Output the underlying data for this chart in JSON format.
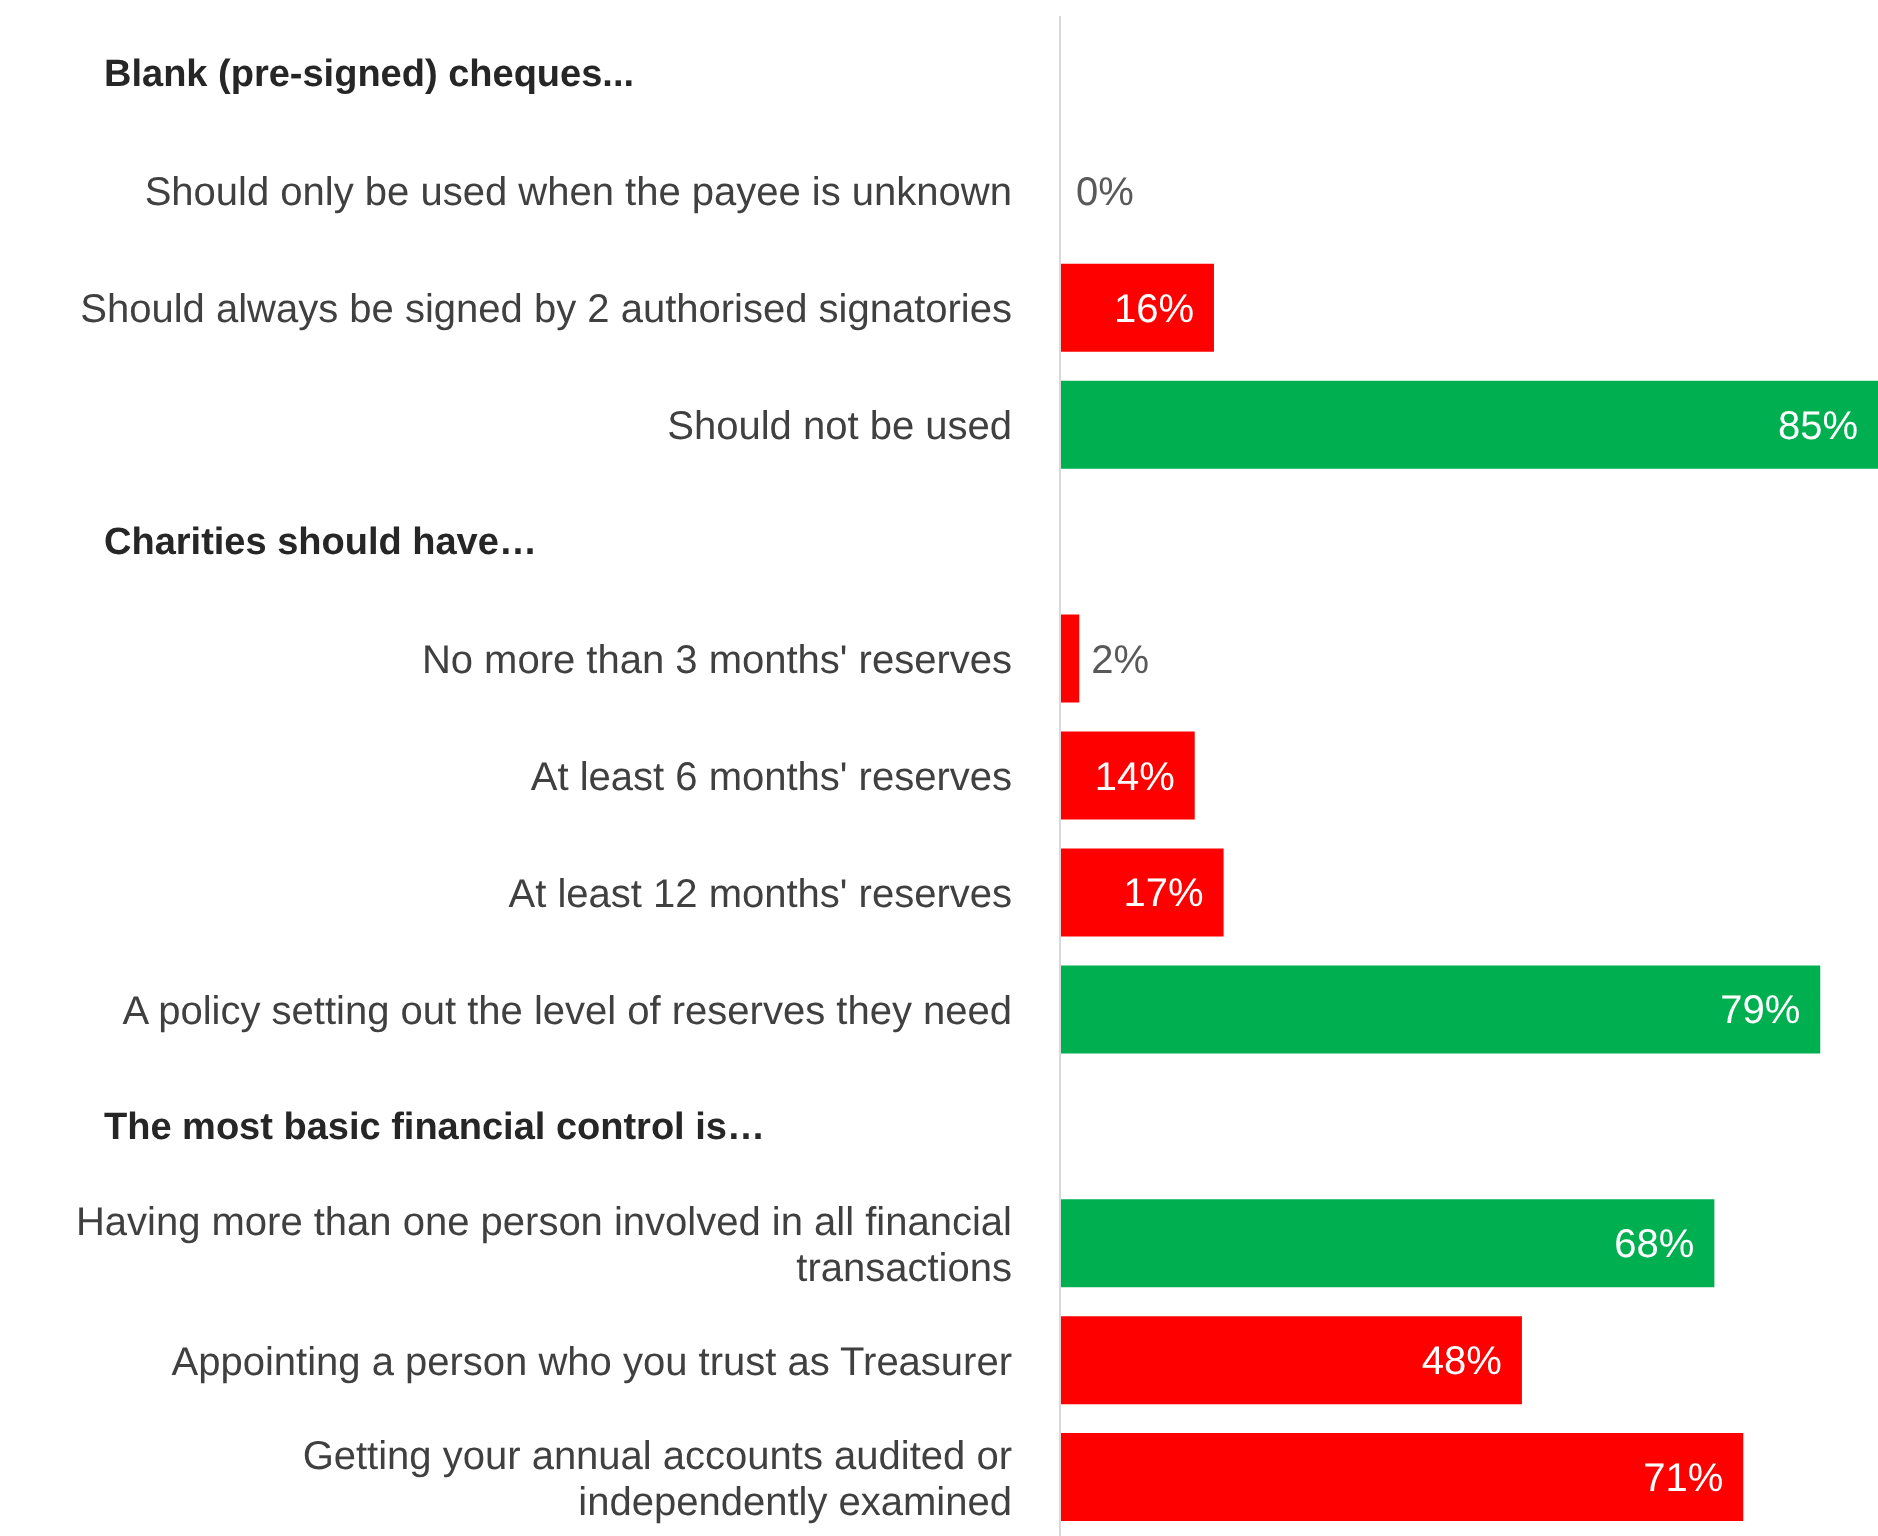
{
  "chart_data": {
    "type": "bar",
    "orientation": "horizontal",
    "categories": [
      null,
      "Should only be used when the payee is unknown",
      "Should always be signed by 2 authorised signatories",
      "Should not be used",
      null,
      "No more than 3 months' reserves",
      "At least 6 months' reserves ",
      "At least 12 months' reserves",
      "A policy setting out the level of reserves they need",
      null,
      "Having more than one person involved in all financial transactions",
      "Appointing a person who you trust as Treasurer",
      "Getting your annual accounts audited or independently examined"
    ],
    "annotations": [
      "Blank (pre-signed) cheques...",
      "Charities should have…",
      "The most basic financial control is…"
    ],
    "values": [
      null,
      0,
      16,
      85,
      null,
      2,
      14,
      17,
      79,
      null,
      68,
      48,
      71
    ],
    "colors": [
      null,
      "#ff0000",
      "#ff0000",
      "#00b050",
      null,
      "#ff0000",
      "#ff0000",
      "#ff0000",
      "#00b050",
      null,
      "#00b050",
      "#ff0000",
      "#ff0000"
    ],
    "value_labels": [
      null,
      "0%",
      "16%",
      "85%",
      null,
      "2%",
      "14%",
      "17%",
      "79%",
      null,
      "68%",
      "48%",
      "71%"
    ]
  }
}
